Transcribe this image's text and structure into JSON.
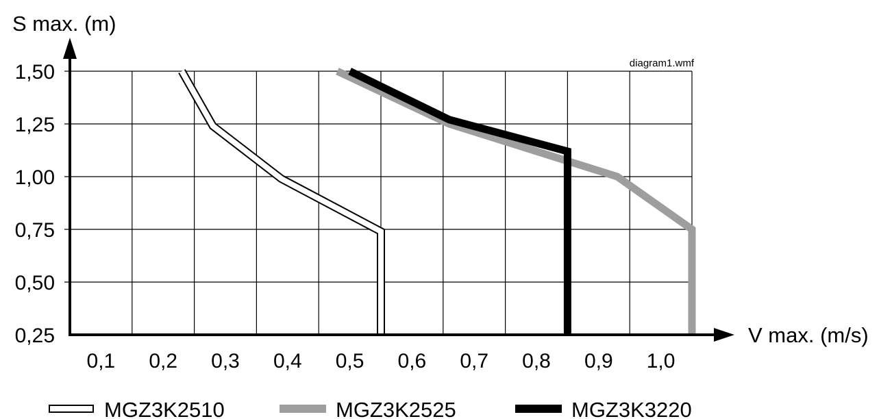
{
  "chart_data": {
    "type": "line",
    "ylabel": "S max. (m)",
    "xlabel": "V max. (m/s)",
    "note": "diagram1.wmf",
    "x_ticks": [
      "0,1",
      "0,2",
      "0,3",
      "0,4",
      "0,5",
      "0,6",
      "0,7",
      "0,8",
      "0,9",
      "1,0"
    ],
    "y_ticks": [
      "0,25",
      "0,50",
      "0,75",
      "1,00",
      "1,25",
      "1,50"
    ],
    "xlim": [
      0.0,
      1.0
    ],
    "ylim": [
      0.25,
      1.5
    ],
    "grid": true,
    "legend_position": "bottom",
    "series": [
      {
        "name": "MGZ3K2510",
        "style": "outlined",
        "color": "#000000",
        "points": [
          [
            0.18,
            1.5
          ],
          [
            0.23,
            1.24
          ],
          [
            0.34,
            0.99
          ],
          [
            0.5,
            0.74
          ],
          [
            0.5,
            0.25
          ]
        ]
      },
      {
        "name": "MGZ3K2525",
        "style": "thick",
        "color": "#9e9e9e",
        "points": [
          [
            0.43,
            1.5
          ],
          [
            0.61,
            1.25
          ],
          [
            0.88,
            1.0
          ],
          [
            1.0,
            0.75
          ],
          [
            1.0,
            0.25
          ]
        ]
      },
      {
        "name": "MGZ3K3220",
        "style": "thick",
        "color": "#000000",
        "points": [
          [
            0.45,
            1.5
          ],
          [
            0.61,
            1.27
          ],
          [
            0.8,
            1.12
          ],
          [
            0.8,
            0.25
          ]
        ]
      }
    ]
  }
}
